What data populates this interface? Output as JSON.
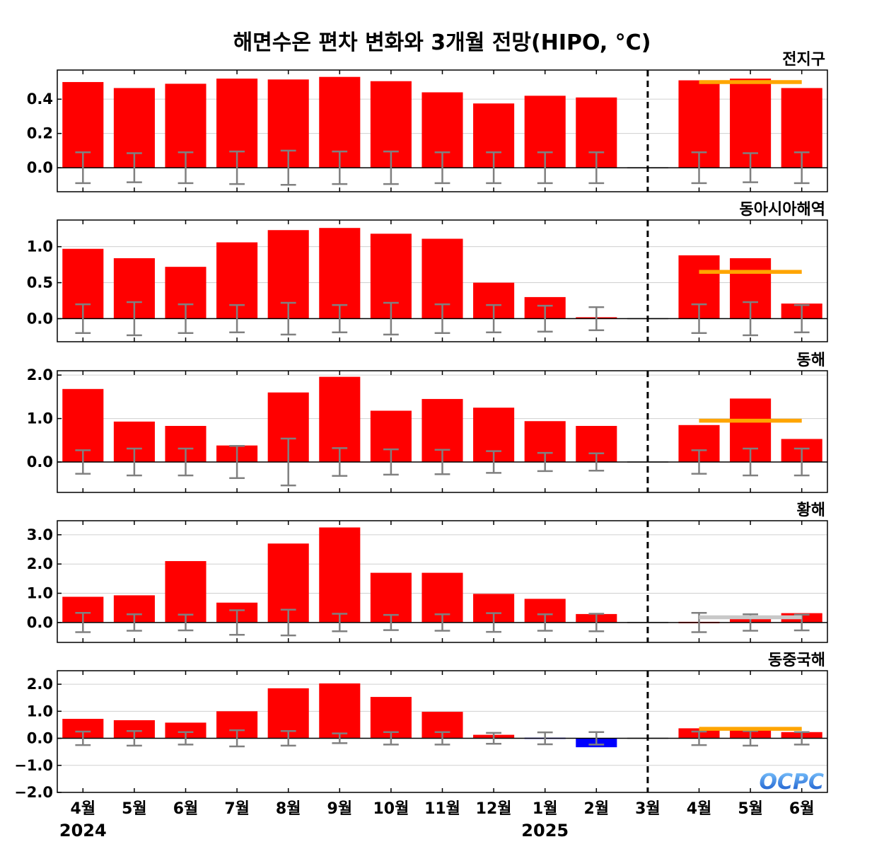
{
  "title": "해면수온 편차 변화와 3개월 전망(HIPO, °C)",
  "logo": "OCPC",
  "colors": {
    "positive": "#ff0000",
    "negative": "#0000ff",
    "negative_light": "#6464ff",
    "error_bar": "#808080",
    "forecast_line": "#ffa500",
    "forecast_line_neutral": "#c8c8c8",
    "divider": "#000000"
  },
  "chart_data": [
    {
      "type": "bar",
      "title": "전지구",
      "categories": [
        "4월",
        "5월",
        "6월",
        "7월",
        "8월",
        "9월",
        "10월",
        "11월",
        "12월",
        "1월",
        "2월",
        "3월",
        "4월",
        "5월",
        "6월"
      ],
      "values": [
        0.5,
        0.465,
        0.49,
        0.52,
        0.515,
        0.53,
        0.505,
        0.44,
        0.375,
        0.42,
        0.41,
        0.0,
        0.51,
        0.52,
        0.465
      ],
      "error_range": [
        0.09,
        0.085,
        0.09,
        0.095,
        0.1,
        0.095,
        0.095,
        0.09,
        0.09,
        0.09,
        0.09,
        null,
        0.09,
        0.085,
        0.09
      ],
      "forecast_mean": 0.5,
      "forecast_color": "orange",
      "ylim": [
        -0.14,
        0.57
      ],
      "yticks": [
        0.0,
        0.2,
        0.4
      ],
      "ytick_labels": [
        "0.0",
        "0.2",
        "0.4"
      ],
      "grid": true
    },
    {
      "type": "bar",
      "title": "동아시아해역",
      "categories": [
        "4월",
        "5월",
        "6월",
        "7월",
        "8월",
        "9월",
        "10월",
        "11월",
        "12월",
        "1월",
        "2월",
        "3월",
        "4월",
        "5월",
        "6월"
      ],
      "values": [
        0.97,
        0.84,
        0.72,
        1.06,
        1.23,
        1.26,
        1.18,
        1.11,
        0.5,
        0.3,
        0.02,
        0.0,
        0.88,
        0.84,
        0.21
      ],
      "error_range": [
        0.2,
        0.23,
        0.2,
        0.19,
        0.22,
        0.19,
        0.22,
        0.2,
        0.19,
        0.18,
        0.16,
        null,
        0.2,
        0.23,
        0.19
      ],
      "forecast_mean": 0.65,
      "forecast_color": "orange",
      "ylim": [
        -0.32,
        1.37
      ],
      "yticks": [
        0.0,
        0.5,
        1.0
      ],
      "ytick_labels": [
        "0.0",
        "0.5",
        "1.0"
      ],
      "grid": true
    },
    {
      "type": "bar",
      "title": "동해",
      "categories": [
        "4월",
        "5월",
        "6월",
        "7월",
        "8월",
        "9월",
        "10월",
        "11월",
        "12월",
        "1월",
        "2월",
        "3월",
        "4월",
        "5월",
        "6월"
      ],
      "values": [
        1.68,
        0.93,
        0.83,
        0.38,
        1.6,
        1.96,
        1.18,
        1.45,
        1.25,
        0.94,
        0.83,
        0.0,
        0.85,
        1.46,
        0.53
      ],
      "error_range": [
        0.27,
        0.31,
        0.31,
        0.37,
        0.54,
        0.32,
        0.29,
        0.28,
        0.25,
        0.21,
        0.2,
        null,
        0.27,
        0.31,
        0.31
      ],
      "forecast_mean": 0.95,
      "forecast_color": "orange",
      "ylim": [
        -0.7,
        2.1
      ],
      "yticks": [
        0.0,
        1.0,
        2.0
      ],
      "ytick_labels": [
        "0.0",
        "1.0",
        "2.0"
      ],
      "grid": true
    },
    {
      "type": "bar",
      "title": "황해",
      "categories": [
        "4월",
        "5월",
        "6월",
        "7월",
        "8월",
        "9월",
        "10월",
        "11월",
        "12월",
        "1월",
        "2월",
        "3월",
        "4월",
        "5월",
        "6월"
      ],
      "values": [
        0.88,
        0.93,
        2.1,
        0.68,
        2.7,
        3.25,
        1.7,
        1.7,
        0.98,
        0.81,
        0.29,
        0.0,
        0.0,
        0.2,
        0.32
      ],
      "error_range": [
        0.33,
        0.28,
        0.27,
        0.42,
        0.44,
        0.3,
        0.26,
        0.28,
        0.32,
        0.28,
        0.3,
        null,
        0.33,
        0.28,
        0.27
      ],
      "forecast_mean": 0.18,
      "forecast_color": "gray",
      "ylim": [
        -0.68,
        3.48
      ],
      "yticks": [
        0.0,
        1.0,
        2.0,
        3.0
      ],
      "ytick_labels": [
        "0.0",
        "1.0",
        "2.0",
        "3.0"
      ],
      "grid": true
    },
    {
      "type": "bar",
      "title": "동중국해",
      "categories": [
        "4월",
        "5월",
        "6월",
        "7월",
        "8월",
        "9월",
        "10월",
        "11월",
        "12월",
        "1월",
        "2월",
        "3월",
        "4월",
        "5월",
        "6월"
      ],
      "values": [
        0.72,
        0.67,
        0.58,
        1.0,
        1.85,
        2.03,
        1.53,
        0.98,
        0.13,
        -0.05,
        -0.33,
        0.0,
        0.37,
        0.35,
        0.23
      ],
      "error_range": [
        0.25,
        0.27,
        0.23,
        0.3,
        0.27,
        0.18,
        0.23,
        0.23,
        0.2,
        0.22,
        0.23,
        null,
        0.25,
        0.27,
        0.23
      ],
      "forecast_mean": 0.35,
      "forecast_color": "orange",
      "ylim": [
        -2.0,
        2.5
      ],
      "yticks": [
        -2.0,
        -1.0,
        0.0,
        1.0,
        2.0
      ],
      "ytick_labels": [
        "−2.0",
        "−1.0",
        "0.0",
        "1.0",
        "2.0"
      ],
      "grid": true
    }
  ],
  "x_axis": {
    "labels": [
      "4월",
      "5월",
      "6월",
      "7월",
      "8월",
      "9월",
      "10월",
      "11월",
      "12월",
      "1월",
      "2월",
      "3월",
      "4월",
      "5월",
      "6월"
    ],
    "years": [
      {
        "label": "2024",
        "index": 0
      },
      {
        "label": "2025",
        "index": 9
      }
    ],
    "divider_index": 11,
    "forecast_span": [
      12,
      14
    ]
  }
}
